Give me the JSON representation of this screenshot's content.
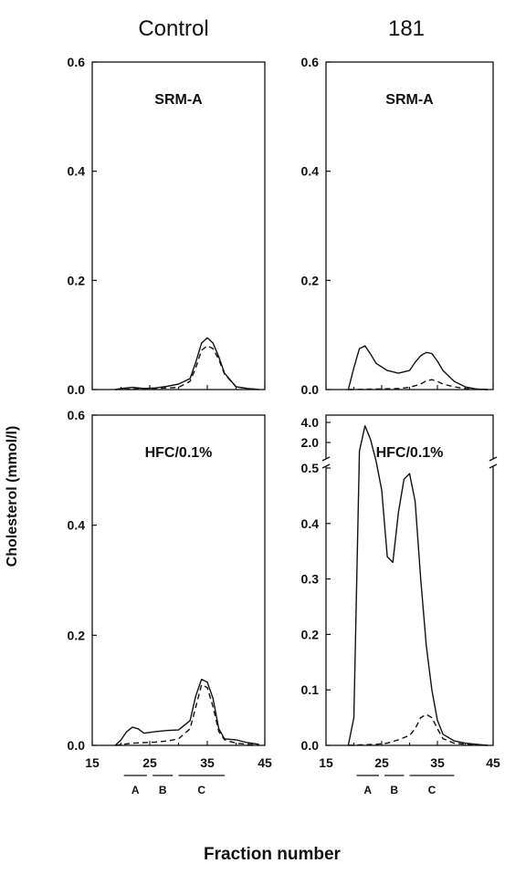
{
  "column_titles": [
    "Control",
    "181"
  ],
  "ylabel": "Cholesterol (mmol/l)",
  "xlabel": "Fraction number",
  "x_ticks": [
    "15",
    "25",
    "35",
    "45"
  ],
  "fractions": [
    {
      "label": "A",
      "from": 20.5,
      "to": 24.5
    },
    {
      "label": "B",
      "from": 25.5,
      "to": 29.0
    },
    {
      "label": "C",
      "from": 30.0,
      "to": 38.0
    }
  ],
  "chart_data": [
    {
      "type": "line",
      "column": "Control",
      "annotation": "SRM-A",
      "xlim": [
        15,
        45
      ],
      "ylim": [
        0,
        0.6
      ],
      "y_ticks": [
        "0.0",
        "0.2",
        "0.4",
        "0.6"
      ],
      "series": [
        {
          "style": "solid",
          "x": [
            19,
            20,
            22,
            24,
            26,
            28,
            30,
            32,
            33,
            34,
            35,
            36,
            37,
            38,
            40,
            42,
            44
          ],
          "y": [
            0,
            0.002,
            0.004,
            0.002,
            0.003,
            0.006,
            0.01,
            0.02,
            0.05,
            0.085,
            0.095,
            0.085,
            0.06,
            0.03,
            0.005,
            0.002,
            0
          ]
        },
        {
          "style": "dashed",
          "x": [
            19,
            22,
            26,
            30,
            32,
            33,
            34,
            35,
            36,
            37,
            38,
            40,
            42,
            44
          ],
          "y": [
            0,
            0.001,
            0.002,
            0.004,
            0.015,
            0.04,
            0.072,
            0.08,
            0.075,
            0.055,
            0.028,
            0.005,
            0.002,
            0
          ]
        }
      ]
    },
    {
      "type": "line",
      "column": "181",
      "annotation": "SRM-A",
      "xlim": [
        15,
        45
      ],
      "ylim": [
        0,
        0.6
      ],
      "y_ticks": [
        "0.0",
        "0.2",
        "0.4",
        "0.6"
      ],
      "series": [
        {
          "style": "solid",
          "x": [
            19,
            20,
            21,
            22,
            23,
            24,
            26,
            28,
            30,
            31,
            32,
            33,
            34,
            35,
            36,
            38,
            40,
            42,
            44
          ],
          "y": [
            0,
            0.04,
            0.075,
            0.08,
            0.065,
            0.048,
            0.035,
            0.03,
            0.035,
            0.05,
            0.062,
            0.068,
            0.066,
            0.052,
            0.035,
            0.015,
            0.005,
            0.001,
            0
          ]
        },
        {
          "style": "dashed",
          "x": [
            19,
            24,
            28,
            30,
            32,
            33,
            34,
            35,
            36,
            38,
            40,
            42,
            44
          ],
          "y": [
            0,
            0.001,
            0.002,
            0.004,
            0.01,
            0.016,
            0.018,
            0.015,
            0.01,
            0.005,
            0.002,
            0.001,
            0
          ]
        }
      ]
    },
    {
      "type": "line",
      "column": "Control",
      "annotation": "HFC/0.1%",
      "xlim": [
        15,
        45
      ],
      "ylim": [
        0,
        0.6
      ],
      "y_ticks": [
        "0.0",
        "0.2",
        "0.4",
        "0.6"
      ],
      "series": [
        {
          "style": "solid",
          "x": [
            19,
            20,
            21,
            22,
            23,
            24,
            26,
            28,
            30,
            32,
            33,
            34,
            35,
            36,
            37,
            38,
            40,
            42,
            44
          ],
          "y": [
            0,
            0.01,
            0.025,
            0.033,
            0.03,
            0.022,
            0.025,
            0.027,
            0.028,
            0.045,
            0.09,
            0.12,
            0.115,
            0.085,
            0.03,
            0.012,
            0.01,
            0.005,
            0.002
          ]
        },
        {
          "style": "dashed",
          "x": [
            19,
            22,
            26,
            28,
            30,
            32,
            33,
            34,
            35,
            36,
            37,
            38,
            40,
            42,
            44
          ],
          "y": [
            0,
            0.004,
            0.006,
            0.008,
            0.012,
            0.03,
            0.07,
            0.11,
            0.105,
            0.07,
            0.025,
            0.01,
            0.004,
            0.002,
            0
          ]
        }
      ]
    },
    {
      "type": "line",
      "column": "181",
      "annotation": "HFC/0.1%",
      "xlim": [
        15,
        45
      ],
      "y_scale": "broken",
      "upper_ticks": [
        "2.0",
        "4.0"
      ],
      "lower_ticks": [
        "0.0",
        "0.1",
        "0.2",
        "0.3",
        "0.4",
        "0.5"
      ],
      "series": [
        {
          "style": "solid",
          "x": [
            19,
            20,
            21,
            22,
            23,
            24,
            25,
            26,
            27,
            28,
            29,
            30,
            31,
            32,
            33,
            34,
            35,
            36,
            38,
            40,
            42,
            44
          ],
          "y": [
            0,
            0.05,
            1.5,
            3.7,
            2.5,
            0.6,
            0.46,
            0.34,
            0.33,
            0.42,
            0.48,
            0.49,
            0.44,
            0.3,
            0.18,
            0.1,
            0.045,
            0.02,
            0.008,
            0.004,
            0.002,
            0
          ]
        },
        {
          "style": "dashed",
          "x": [
            19,
            24,
            26,
            28,
            30,
            31,
            32,
            33,
            34,
            35,
            36,
            38,
            40,
            42,
            44
          ],
          "y": [
            0,
            0.002,
            0.004,
            0.01,
            0.018,
            0.03,
            0.05,
            0.056,
            0.05,
            0.03,
            0.012,
            0.004,
            0.002,
            0.001,
            0
          ]
        }
      ]
    }
  ]
}
